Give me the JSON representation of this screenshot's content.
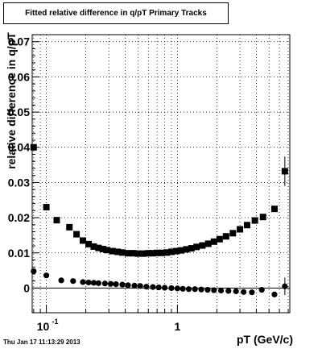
{
  "chart_data": {
    "type": "scatter",
    "title": "Fitted relative difference in q/pT  Primary Tracks",
    "xlabel": "pT (GeV/c)",
    "ylabel": "relative difference in q/pT",
    "x_scale": "log",
    "xlim": [
      0.078,
      7.2
    ],
    "ylim": [
      -0.007,
      0.072
    ],
    "grid": true,
    "y_ticks": [
      {
        "v": 0,
        "label": "0"
      },
      {
        "v": 0.01,
        "label": "0.01"
      },
      {
        "v": 0.02,
        "label": "0.02"
      },
      {
        "v": 0.03,
        "label": "0.03"
      },
      {
        "v": 0.04,
        "label": "0.04"
      },
      {
        "v": 0.05,
        "label": "0.05"
      },
      {
        "v": 0.06,
        "label": "0.06"
      },
      {
        "v": 0.07,
        "label": "0.07"
      }
    ],
    "x_ticks": [
      {
        "v": 0.1,
        "base": "10",
        "exp": "-1"
      },
      {
        "v": 1,
        "base": "1",
        "exp": ""
      }
    ],
    "series": [
      {
        "marker": "square",
        "x": [
          0.08,
          0.1,
          0.12,
          0.15,
          0.17,
          0.19,
          0.21,
          0.23,
          0.25,
          0.27,
          0.29,
          0.32,
          0.35,
          0.38,
          0.42,
          0.46,
          0.5,
          0.55,
          0.6,
          0.65,
          0.7,
          0.76,
          0.83,
          0.9,
          0.98,
          1.07,
          1.17,
          1.28,
          1.4,
          1.55,
          1.72,
          1.9,
          2.1,
          2.35,
          2.65,
          3.0,
          3.4,
          3.9,
          4.5,
          5.5
        ],
        "y": [
          0.04,
          0.023,
          0.0193,
          0.0173,
          0.0153,
          0.0135,
          0.0125,
          0.0118,
          0.0114,
          0.0111,
          0.0108,
          0.0105,
          0.0103,
          0.0101,
          0.0099,
          0.0099,
          0.0098,
          0.0098,
          0.0099,
          0.0099,
          0.01,
          0.01,
          0.0101,
          0.0103,
          0.0105,
          0.0107,
          0.011,
          0.0113,
          0.0117,
          0.0121,
          0.0126,
          0.0132,
          0.0139,
          0.0147,
          0.0156,
          0.0167,
          0.0179,
          0.0192,
          0.0202,
          0.0225
        ],
        "y_err": [
          0,
          0,
          0,
          0,
          0,
          0,
          0,
          0,
          0,
          0,
          0,
          0,
          0,
          0,
          0,
          0,
          0,
          0,
          0,
          0,
          0,
          0,
          0,
          0,
          0,
          0,
          0,
          0,
          0,
          0,
          0,
          0,
          0,
          0,
          0,
          0,
          0,
          0,
          0,
          0.0005
        ]
      },
      {
        "marker": "square",
        "x": [
          6.6
        ],
        "y": [
          0.0332
        ],
        "y_err": [
          0.0042
        ]
      },
      {
        "marker": "circle",
        "x": [
          0.08,
          0.1,
          0.13,
          0.16,
          0.19,
          0.21,
          0.23,
          0.25,
          0.28,
          0.31,
          0.34,
          0.38,
          0.42,
          0.47,
          0.52,
          0.58,
          0.65,
          0.72,
          0.8,
          0.9,
          1.0,
          1.1,
          1.22,
          1.36,
          1.52,
          1.7,
          1.9,
          2.15,
          2.45,
          2.8,
          3.2,
          3.7,
          4.4,
          5.5,
          6.6
        ],
        "y": [
          0.0048,
          0.0036,
          0.0022,
          0.002,
          0.0017,
          0.0016,
          0.0015,
          0.0014,
          0.0013,
          0.0012,
          0.0011,
          0.001,
          0.0008,
          0.0007,
          0.0006,
          0.0004,
          0.0003,
          0.0002,
          0.0001,
          0.0,
          -0.0001,
          -0.0002,
          -0.0003,
          -0.0003,
          -0.0004,
          -0.0005,
          -0.0006,
          -0.0007,
          -0.0008,
          -0.0009,
          -0.0011,
          -0.0012,
          -0.0005,
          -0.0018,
          0.0005
        ],
        "y_err": [
          0,
          0,
          0,
          0,
          0,
          0,
          0,
          0,
          0,
          0,
          0,
          0,
          0,
          0,
          0,
          0,
          0,
          0,
          0,
          0,
          0,
          0,
          0,
          0,
          0,
          0,
          0,
          0,
          0,
          0,
          0,
          0,
          0,
          0,
          0.0025
        ]
      }
    ]
  },
  "footer": "Thu Jan 17 11:13:29 2013"
}
